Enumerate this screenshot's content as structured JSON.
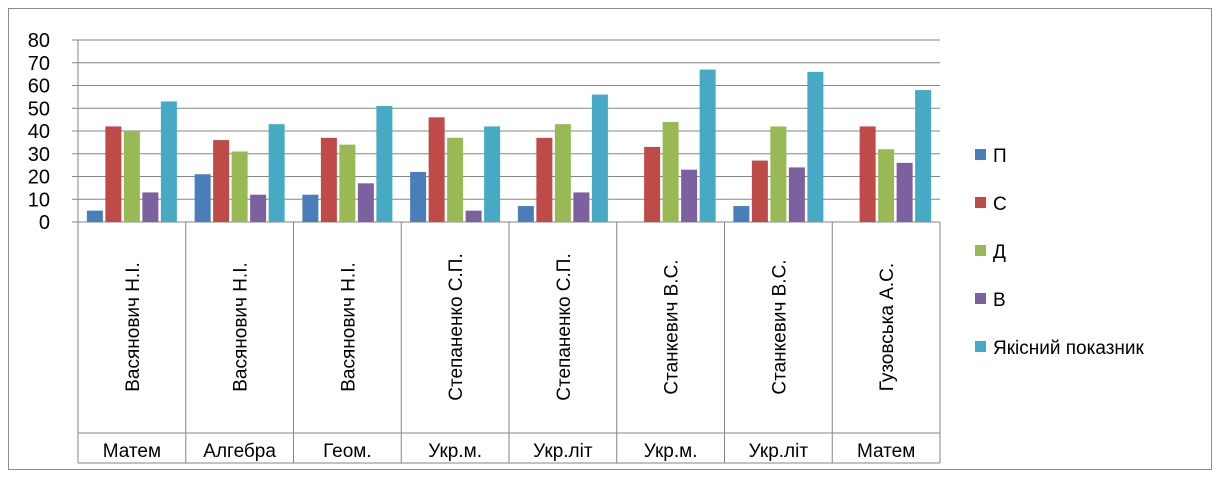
{
  "chart_data": {
    "type": "bar",
    "ylim": [
      0,
      80
    ],
    "yticks": [
      "0",
      "10",
      "20",
      "30",
      "40",
      "50",
      "60",
      "70",
      "80"
    ],
    "grid": true,
    "legend_position": "right",
    "categories": [
      {
        "teacher": "Васянович Н.І.",
        "subject": "Матем"
      },
      {
        "teacher": "Васянович Н.І.",
        "subject": "Алгебра"
      },
      {
        "teacher": "Васянович Н.І.",
        "subject": "Геом."
      },
      {
        "teacher": "Степаненко С.П.",
        "subject": "Укр.м."
      },
      {
        "teacher": "Степаненко С.П.",
        "subject": "Укр.літ"
      },
      {
        "teacher": "Станкевич В.С.",
        "subject": "Укр.м."
      },
      {
        "teacher": "Станкевич В.С.",
        "subject": "Укр.літ"
      },
      {
        "teacher": "Гузовська А.С.",
        "subject": "Матем"
      }
    ],
    "series": [
      {
        "name": "П",
        "color": "#4a7ebb",
        "values": [
          5,
          21,
          12,
          22,
          7,
          0,
          7,
          0
        ]
      },
      {
        "name": "С",
        "color": "#be4b48",
        "values": [
          42,
          36,
          37,
          46,
          37,
          33,
          27,
          42
        ]
      },
      {
        "name": "Д",
        "color": "#98b954",
        "values": [
          40,
          31,
          34,
          37,
          43,
          44,
          42,
          32
        ]
      },
      {
        "name": "В",
        "color": "#7d60a0",
        "values": [
          13,
          12,
          17,
          5,
          13,
          23,
          24,
          26
        ]
      },
      {
        "name": "Якісний показник",
        "color": "#46aac5",
        "values": [
          53,
          43,
          51,
          42,
          56,
          67,
          66,
          58
        ]
      }
    ]
  }
}
